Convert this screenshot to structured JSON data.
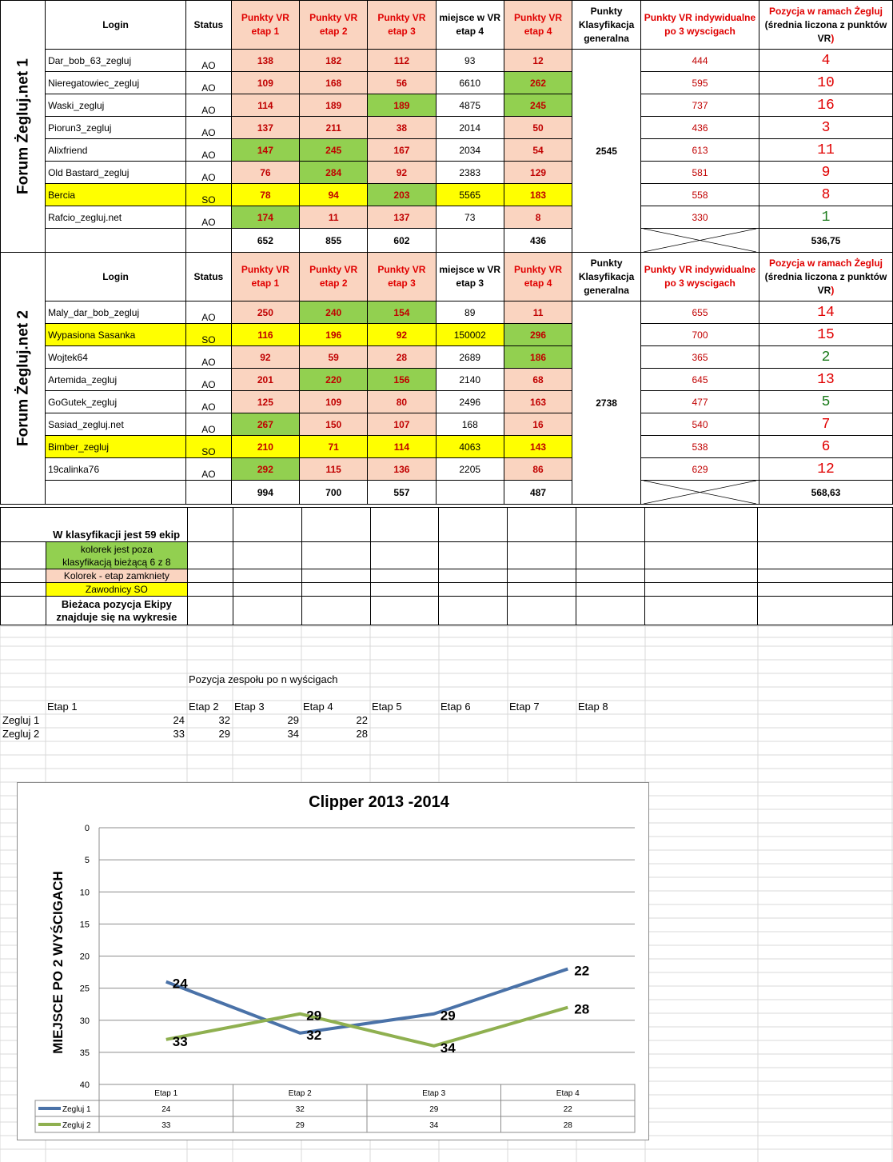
{
  "headers": {
    "login": "Login",
    "status": "Status",
    "vr1": "Punkty VR etap 1",
    "vr2": "Punkty VR etap 2",
    "vr3": "Punkty VR etap 3",
    "vr4": "Punkty VR etap 4",
    "miejsce_f1": "miejsce w VR etap 4",
    "miejsce_f2": "miejsce w VR etap 3",
    "klas": "Punkty Klasyfikacja generalna",
    "indyw": "Punkty VR indywidualne po 3 wyscigach",
    "pozycja_main": "Pozycja w ramach Żegluj",
    "pozycja_sub_a": "(średnia liczona z punktów VR",
    "pozycja_sub_b": ")"
  },
  "forum1": {
    "label": "Forum Żegluj.net 1",
    "klasyfikacja": "2545",
    "rows": [
      {
        "login": "Dar_bob_63_zegluj",
        "status": "AO",
        "e1": "138",
        "e2": "182",
        "e3": "112",
        "m": "93",
        "e4": "12",
        "ind": "444",
        "pos": "4"
      },
      {
        "login": "Nieregatowiec_zegluj",
        "status": "AO",
        "e1": "109",
        "e2": "168",
        "e3": "56",
        "m": "6610",
        "e4": "262",
        "ind": "595",
        "pos": "10"
      },
      {
        "login": "Waski_zegluj",
        "status": "AO",
        "e1": "114",
        "e2": "189",
        "e3": "189",
        "m": "4875",
        "e4": "245",
        "ind": "737",
        "pos": "16"
      },
      {
        "login": "Piorun3_zegluj",
        "status": "AO",
        "e1": "137",
        "e2": "211",
        "e3": "38",
        "m": "2014",
        "e4": "50",
        "ind": "436",
        "pos": "3"
      },
      {
        "login": "Alixfriend",
        "status": "AO",
        "e1": "147",
        "e2": "245",
        "e3": "167",
        "m": "2034",
        "e4": "54",
        "ind": "613",
        "pos": "11"
      },
      {
        "login": "Old Bastard_zegluj",
        "status": "AO",
        "e1": "76",
        "e2": "284",
        "e3": "92",
        "m": "2383",
        "e4": "129",
        "ind": "581",
        "pos": "9"
      },
      {
        "login": "Bercia",
        "status": "SO",
        "e1": "78",
        "e2": "94",
        "e3": "203",
        "m": "5565",
        "e4": "183",
        "ind": "558",
        "pos": "8"
      },
      {
        "login": "Rafcio_zegluj.net",
        "status": "AO",
        "e1": "174",
        "e2": "11",
        "e3": "137",
        "m": "73",
        "e4": "8",
        "ind": "330",
        "pos": "1"
      }
    ],
    "sums": {
      "e1": "652",
      "e2": "855",
      "e3": "602",
      "e4": "436",
      "avg": "536,75"
    }
  },
  "forum2": {
    "label": "Forum Żegluj.net 2",
    "klasyfikacja": "2738",
    "rows": [
      {
        "login": "Maly_dar_bob_zegluj",
        "status": "AO",
        "e1": "250",
        "e2": "240",
        "e3": "154",
        "m": "89",
        "e4": "11",
        "ind": "655",
        "pos": "14"
      },
      {
        "login": "Wypasiona Sasanka",
        "status": "SO",
        "e1": "116",
        "e2": "196",
        "e3": "92",
        "m": "150002",
        "e4": "296",
        "ind": "700",
        "pos": "15"
      },
      {
        "login": "Wojtek64",
        "status": "AO",
        "e1": "92",
        "e2": "59",
        "e3": "28",
        "m": "2689",
        "e4": "186",
        "ind": "365",
        "pos": "2"
      },
      {
        "login": "Artemida_zegluj",
        "status": "AO",
        "e1": "201",
        "e2": "220",
        "e3": "156",
        "m": "2140",
        "e4": "68",
        "ind": "645",
        "pos": "13"
      },
      {
        "login": "GoGutek_zegluj",
        "status": "AO",
        "e1": "125",
        "e2": "109",
        "e3": "80",
        "m": "2496",
        "e4": "163",
        "ind": "477",
        "pos": "5"
      },
      {
        "login": "Sasiad_zegluj.net",
        "status": "AO",
        "e1": "267",
        "e2": "150",
        "e3": "107",
        "m": "168",
        "e4": "16",
        "ind": "540",
        "pos": "7"
      },
      {
        "login": "Bimber_zegluj",
        "status": "SO",
        "e1": "210",
        "e2": "71",
        "e3": "114",
        "m": "4063",
        "e4": "143",
        "ind": "538",
        "pos": "6"
      },
      {
        "login": "19calinka76",
        "status": "AO",
        "e1": "292",
        "e2": "115",
        "e3": "136",
        "m": "2205",
        "e4": "86",
        "ind": "629",
        "pos": "12"
      }
    ],
    "sums": {
      "e1": "994",
      "e2": "700",
      "e3": "557",
      "e4": "487",
      "avg": "568,63"
    }
  },
  "legend": {
    "ekip": "W klasyfikacji jest 59 ekip",
    "green_a": "kolorek jest  poza",
    "green_b": "klasyfikacją bieżącą 6 z 8",
    "peach": "Kolorek - etap zamkniety",
    "yellow": "Zawodnicy SO",
    "note_a": "Bieżaca pozycja Ekipy",
    "note_b": "znajduje się na wykresie"
  },
  "colors": {
    "peach": "#fad4c0",
    "green": "#92d050",
    "yellow": "#ffff00",
    "series1": "#4a72a8",
    "series2": "#8fb050"
  },
  "summary": {
    "title": "Pozycja zespołu po n wyścigach",
    "etapy": [
      "Etap 1",
      "Etap 2",
      "Etap 3",
      "Etap 4",
      "Etap 5",
      "Etap 6",
      "Etap 7",
      "Etap 8"
    ],
    "rows": [
      {
        "name": "Zegluj 1",
        "values": [
          "24",
          "32",
          "29",
          "22"
        ]
      },
      {
        "name": "Zegluj 2",
        "values": [
          "33",
          "29",
          "34",
          "28"
        ]
      }
    ]
  },
  "chart_data": {
    "type": "line",
    "title": "Clipper 2013 -2014",
    "ylabel": "MIEJSCE PO 2 WYŚCIGACH",
    "xlabel": "",
    "categories": [
      "Etap 1",
      "Etap 2",
      "Etap 3",
      "Etap 4"
    ],
    "series": [
      {
        "name": "Zegluj 1",
        "values": [
          24,
          32,
          29,
          22
        ]
      },
      {
        "name": "Zegluj 2",
        "values": [
          33,
          29,
          34,
          28
        ]
      }
    ],
    "ylim": [
      0,
      40
    ],
    "yticks": [
      "0",
      "5",
      "10",
      "15",
      "20",
      "25",
      "30",
      "35",
      "40"
    ],
    "y_reversed": true,
    "grid": true,
    "legend": "data-table-bottom"
  }
}
